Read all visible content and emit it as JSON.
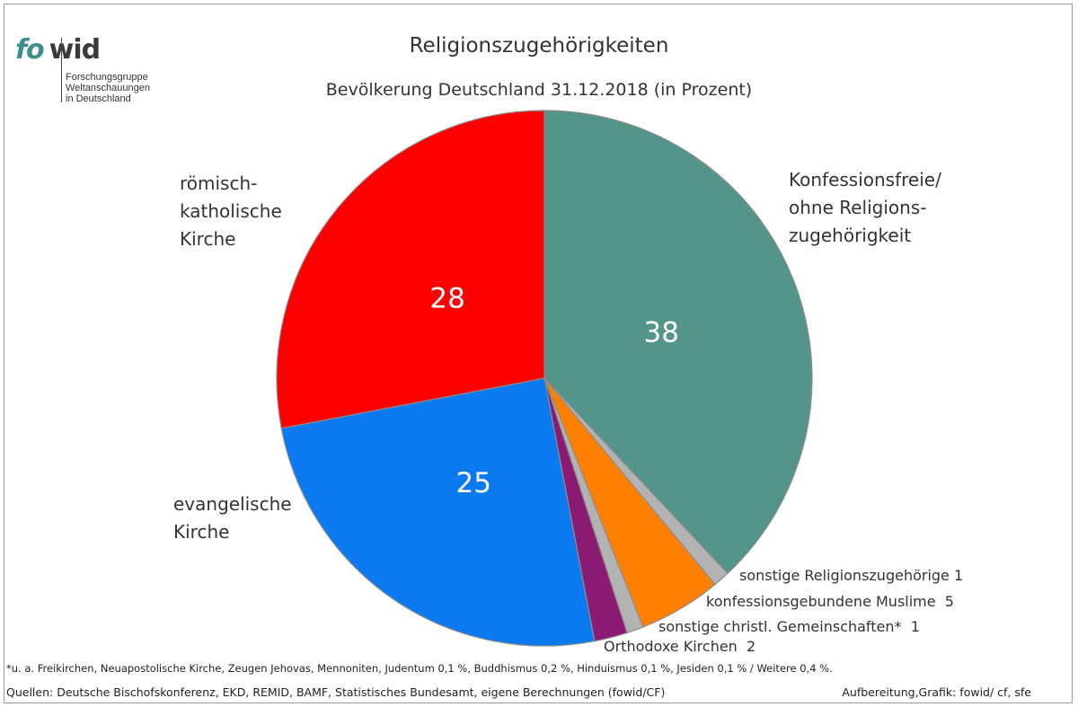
{
  "logo": {
    "brand_a": "fo",
    "brand_b": "wid",
    "lines": [
      "Forschungsgruppe",
      "Weltanschauungen",
      "in Deutschland"
    ]
  },
  "chart_data": {
    "type": "pie",
    "title": "Religionszugehörigkeiten",
    "subtitle": "Bevölkerung Deutschland 31.12.2018 (in Prozent)",
    "slices": [
      {
        "label": "Konfessionsfreie/\nohne Religions-\nzugehörigkeit",
        "value": 38,
        "color": "#53958a",
        "value_label": "38"
      },
      {
        "label": "sonstige Religionszugehörige",
        "value": 1,
        "color": "#b3b3b3",
        "value_label": "1"
      },
      {
        "label": "konfessionsgebundene Muslime",
        "value": 5,
        "color": "#ff7f00",
        "value_label": "5"
      },
      {
        "label": "sonstige christl. Gemeinschaften*",
        "value": 1,
        "color": "#b3b3b3",
        "value_label": "1"
      },
      {
        "label": "Orthodoxe Kirchen",
        "value": 2,
        "color": "#8b1a72",
        "value_label": "2"
      },
      {
        "label": "evangelische\nKirche",
        "value": 25,
        "color": "#0b7af0",
        "value_label": "25"
      },
      {
        "label": "römisch-\nkatholische\nKirche",
        "value": 28,
        "color": "#ff0000",
        "value_label": "28"
      }
    ],
    "value_label_color": "#ffffff",
    "slice_border_color": "#8c8c8c"
  },
  "footnote": "*u. a. Freikirchen, Neuapostolische Kirche, Zeugen Jehovas, Mennoniten, Judentum 0,1 %, Buddhismus 0,2 %, Hinduismus 0,1 %, Jesiden 0,1 % / Weitere 0,4 %.",
  "sources": "Quellen: Deutsche Bischofskonferenz, EKD, REMID, BAMF, Statistisches Bundesamt, eigene Berechnungen (fowid/CF)",
  "credit": "Aufbereitung,Grafik: fowid/ cf, sfe"
}
